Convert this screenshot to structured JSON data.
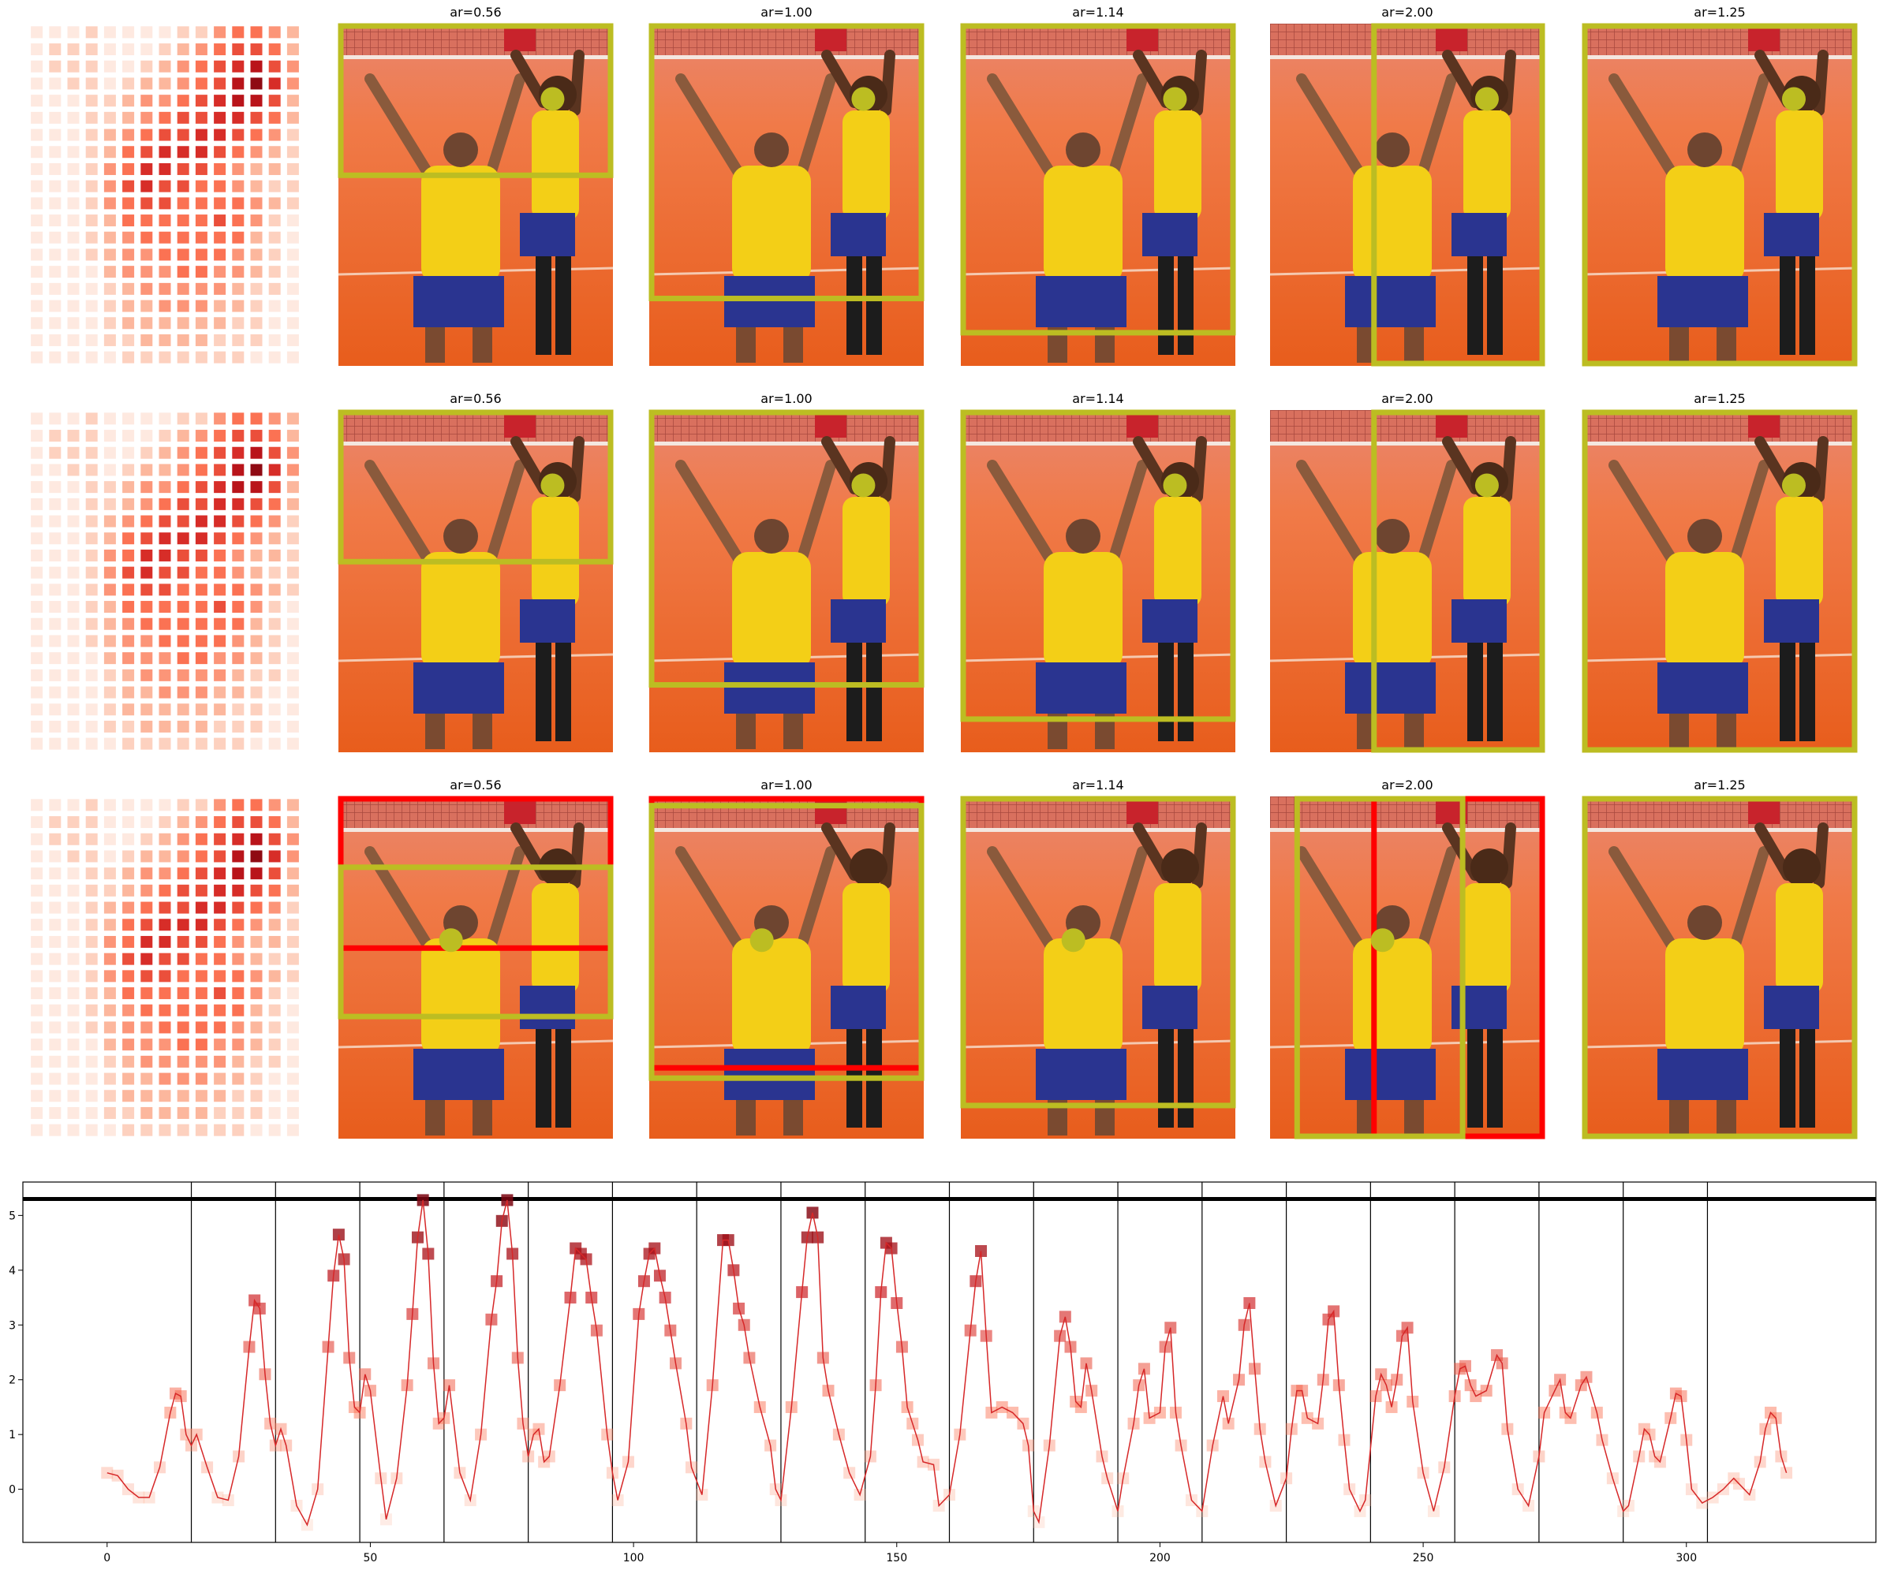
{
  "chart_data": [
    {
      "type": "heatmap",
      "values": [
        [
          1,
          1,
          1,
          2,
          1,
          1,
          1,
          1,
          2,
          2,
          4,
          5,
          5,
          4,
          3
        ],
        [
          1,
          2,
          2,
          2,
          1,
          1,
          1,
          2,
          3,
          4,
          5,
          6,
          6,
          5,
          3
        ],
        [
          1,
          2,
          2,
          2,
          1,
          1,
          2,
          3,
          4,
          5,
          6,
          7,
          8,
          6,
          4
        ],
        [
          1,
          1,
          2,
          2,
          1,
          2,
          3,
          3,
          4,
          5,
          6,
          8,
          9,
          7,
          4
        ],
        [
          1,
          1,
          1,
          2,
          2,
          3,
          4,
          4,
          5,
          6,
          7,
          8,
          8,
          6,
          3
        ],
        [
          1,
          1,
          1,
          2,
          2,
          3,
          4,
          5,
          6,
          6,
          7,
          7,
          6,
          5,
          3
        ],
        [
          1,
          1,
          1,
          2,
          3,
          4,
          5,
          6,
          6,
          7,
          7,
          6,
          5,
          4,
          2
        ],
        [
          1,
          1,
          1,
          2,
          3,
          5,
          6,
          7,
          7,
          7,
          6,
          5,
          4,
          3,
          2
        ],
        [
          1,
          1,
          1,
          2,
          4,
          5,
          7,
          7,
          6,
          6,
          5,
          4,
          3,
          3,
          2
        ],
        [
          1,
          1,
          1,
          2,
          4,
          6,
          7,
          6,
          6,
          5,
          5,
          4,
          3,
          2,
          2
        ],
        [
          1,
          1,
          1,
          2,
          4,
          5,
          6,
          6,
          5,
          5,
          5,
          5,
          4,
          3,
          2
        ],
        [
          1,
          1,
          1,
          2,
          3,
          5,
          5,
          5,
          5,
          5,
          6,
          5,
          4,
          2,
          1
        ],
        [
          1,
          1,
          1,
          2,
          3,
          4,
          5,
          5,
          5,
          5,
          5,
          5,
          3,
          2,
          1
        ],
        [
          1,
          1,
          1,
          2,
          3,
          4,
          4,
          5,
          5,
          5,
          5,
          4,
          3,
          2,
          1
        ],
        [
          1,
          1,
          1,
          1,
          3,
          4,
          4,
          4,
          5,
          5,
          4,
          4,
          3,
          2,
          1
        ],
        [
          1,
          1,
          1,
          1,
          2,
          3,
          4,
          4,
          4,
          4,
          4,
          3,
          2,
          2,
          1
        ],
        [
          1,
          1,
          1,
          1,
          2,
          3,
          3,
          4,
          4,
          4,
          3,
          3,
          2,
          1,
          1
        ],
        [
          1,
          1,
          1,
          1,
          2,
          3,
          3,
          3,
          3,
          3,
          3,
          2,
          2,
          1,
          1
        ],
        [
          1,
          1,
          1,
          1,
          2,
          2,
          3,
          3,
          3,
          3,
          2,
          2,
          2,
          1,
          1
        ],
        [
          1,
          1,
          1,
          1,
          1,
          2,
          2,
          2,
          2,
          2,
          2,
          2,
          1,
          1,
          1
        ]
      ]
    },
    {
      "type": "line",
      "color": "#d62728",
      "x": [
        0,
        2,
        4,
        6,
        8,
        10,
        12,
        13,
        14,
        15,
        16,
        17,
        19,
        21,
        23,
        25,
        27,
        28,
        29,
        30,
        31,
        32,
        33,
        34,
        36,
        38,
        40,
        42,
        43,
        44,
        45,
        46,
        47,
        48,
        49,
        50,
        52,
        53,
        55,
        57,
        58,
        59,
        60,
        61,
        62,
        63,
        64,
        65,
        67,
        69,
        71,
        73,
        74,
        75,
        76,
        77,
        78,
        79,
        80,
        81,
        82,
        83,
        84,
        86,
        88,
        89,
        90,
        91,
        92,
        93,
        95,
        96,
        97,
        99,
        101,
        102,
        103,
        104,
        105,
        106,
        107,
        108,
        110,
        111,
        113,
        115,
        117,
        118,
        119,
        120,
        121,
        122,
        124,
        126,
        127,
        128,
        130,
        132,
        133,
        134,
        135,
        136,
        137,
        139,
        141,
        143,
        145,
        146,
        147,
        148,
        149,
        150,
        151,
        152,
        153,
        154,
        155,
        157,
        158,
        160,
        162,
        164,
        165,
        166,
        167,
        168,
        170,
        172,
        174,
        175,
        176,
        177,
        179,
        181,
        182,
        183,
        184,
        185,
        186,
        187,
        189,
        190,
        192,
        193,
        195,
        196,
        197,
        198,
        200,
        201,
        202,
        203,
        204,
        206,
        208,
        210,
        212,
        213,
        215,
        216,
        217,
        218,
        219,
        220,
        222,
        224,
        225,
        226,
        227,
        228,
        230,
        231,
        232,
        233,
        234,
        235,
        236,
        238,
        239,
        241,
        242,
        243,
        244,
        245,
        246,
        247,
        248,
        250,
        252,
        254,
        256,
        257,
        258,
        259,
        260,
        262,
        264,
        265,
        266,
        268,
        270,
        272,
        273,
        275,
        276,
        277,
        278,
        280,
        281,
        283,
        284,
        286,
        288,
        289,
        291,
        292,
        293,
        294,
        295,
        297,
        298,
        299,
        300,
        301,
        303,
        305,
        307,
        309,
        310,
        312,
        314,
        315,
        316,
        317,
        318,
        319
      ],
      "values": [
        0.3,
        0.25,
        0,
        -0.15,
        -0.15,
        0.4,
        1.4,
        1.75,
        1.7,
        1.0,
        0.8,
        1.0,
        0.4,
        -0.15,
        -0.2,
        0.6,
        2.6,
        3.45,
        3.3,
        2.1,
        1.2,
        0.8,
        1.1,
        0.8,
        -0.3,
        -0.65,
        0,
        2.6,
        3.9,
        4.65,
        4.2,
        2.4,
        1.5,
        1.4,
        2.1,
        1.8,
        0.2,
        -0.55,
        0.2,
        1.9,
        3.2,
        4.6,
        5.28,
        4.3,
        2.3,
        1.2,
        1.3,
        1.9,
        0.3,
        -0.2,
        1.0,
        3.1,
        3.8,
        4.9,
        5.28,
        4.3,
        2.4,
        1.2,
        0.6,
        1.0,
        1.1,
        0.5,
        0.6,
        1.9,
        3.5,
        4.4,
        4.3,
        4.2,
        3.5,
        2.9,
        1.0,
        0.3,
        -0.2,
        0.5,
        3.2,
        3.8,
        4.3,
        4.4,
        3.9,
        3.5,
        2.9,
        2.3,
        1.2,
        0.4,
        -0.1,
        1.9,
        4.55,
        4.55,
        4.0,
        3.3,
        3.0,
        2.4,
        1.5,
        0.8,
        0,
        -0.2,
        1.5,
        3.6,
        4.6,
        5.05,
        4.6,
        2.4,
        1.8,
        1.0,
        0.3,
        -0.1,
        0.6,
        1.9,
        3.6,
        4.5,
        4.4,
        3.4,
        2.6,
        1.5,
        1.2,
        0.9,
        0.5,
        0.45,
        -0.3,
        -0.1,
        1.0,
        2.9,
        3.8,
        4.35,
        2.8,
        1.4,
        1.5,
        1.4,
        1.2,
        0.8,
        -0.4,
        -0.6,
        0.8,
        2.8,
        3.15,
        2.6,
        1.6,
        1.5,
        2.3,
        1.8,
        0.6,
        0.2,
        -0.4,
        0.2,
        1.2,
        1.9,
        2.2,
        1.3,
        1.4,
        2.6,
        2.95,
        1.4,
        0.8,
        -0.2,
        -0.4,
        0.8,
        1.7,
        1.2,
        2.0,
        3.0,
        3.4,
        2.2,
        1.1,
        0.5,
        -0.3,
        0.2,
        1.1,
        1.8,
        1.8,
        1.3,
        1.2,
        2.0,
        3.1,
        3.25,
        1.9,
        0.9,
        0,
        -0.4,
        -0.2,
        1.7,
        2.1,
        1.9,
        1.5,
        2.0,
        2.8,
        2.95,
        1.6,
        0.3,
        -0.4,
        0.4,
        1.7,
        2.2,
        2.25,
        1.9,
        1.7,
        1.8,
        2.45,
        2.3,
        1.1,
        0,
        -0.3,
        0.6,
        1.4,
        1.8,
        2.0,
        1.4,
        1.3,
        1.9,
        2.05,
        1.4,
        0.9,
        0.2,
        -0.4,
        -0.3,
        0.6,
        1.1,
        1.0,
        0.6,
        0.5,
        1.3,
        1.75,
        1.7,
        0.9,
        0,
        -0.25,
        -0.15,
        0,
        0.2,
        0.1,
        -0.1,
        0.5,
        1.1,
        1.4,
        1.3,
        0.6,
        0.3
      ],
      "vlines": [
        16,
        32,
        48,
        64,
        80,
        96,
        112,
        128,
        144,
        160,
        176,
        192,
        208,
        224,
        240,
        256,
        272,
        288,
        304
      ],
      "hline": 5.3,
      "xlim": [
        -16,
        336
      ],
      "ylim": [
        -0.97,
        5.61
      ],
      "xticks": [
        0,
        50,
        100,
        150,
        200,
        250,
        300
      ],
      "yticks": [
        0,
        1,
        2,
        3,
        4,
        5
      ]
    }
  ],
  "image_panels": {
    "rows": [
      {
        "titles": [
          "ar=0.56",
          "ar=1.00",
          "ar=1.14",
          "ar=2.00",
          "ar=1.25"
        ]
      },
      {
        "titles": [
          "ar=0.56",
          "ar=1.00",
          "ar=1.14",
          "ar=2.00",
          "ar=1.25"
        ]
      },
      {
        "titles": [
          "ar=0.56",
          "ar=1.00",
          "ar=1.14",
          "ar=2.00",
          "ar=1.25"
        ]
      }
    ]
  }
}
